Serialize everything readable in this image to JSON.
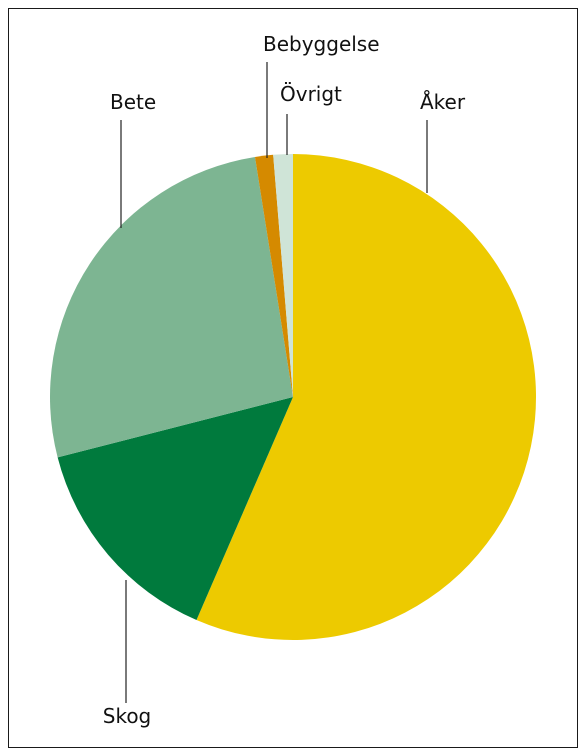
{
  "chart_data": {
    "type": "pie",
    "title": "",
    "categories": [
      "Åker",
      "Skog",
      "Bete",
      "Bebyggelse",
      "Övrigt"
    ],
    "values": [
      56.5,
      14.5,
      26.5,
      1.2,
      1.3
    ],
    "colors": [
      "#edca00",
      "#007a3d",
      "#7db592",
      "#d58a00",
      "#cfe4d7"
    ],
    "start_angle_deg": 0,
    "direction": "clockwise",
    "grid": false,
    "legend": "none"
  }
}
